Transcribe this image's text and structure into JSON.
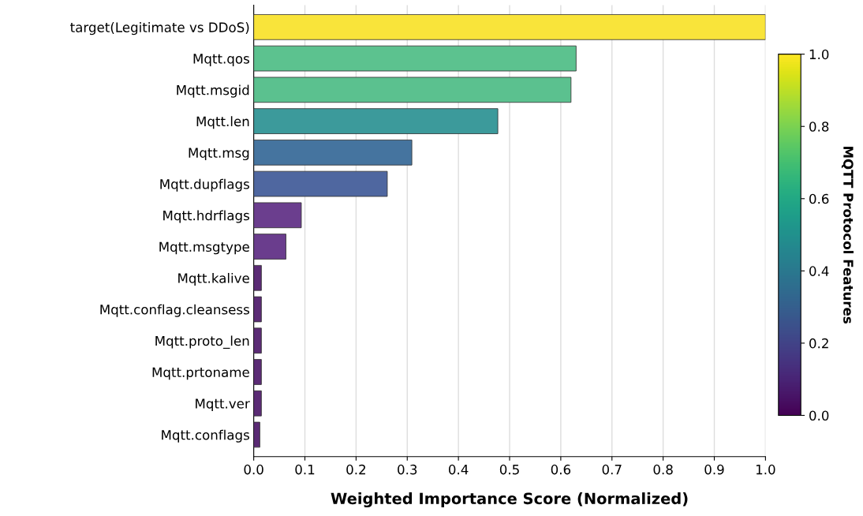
{
  "chart_data": {
    "type": "bar",
    "orientation": "horizontal",
    "xlabel": "Weighted Importance Score (Normalized)",
    "clabel": "MQTT Protocol Features",
    "categories": [
      "target(Legitimate vs DDoS)",
      "Mqtt.qos",
      "Mqtt.msgid",
      "Mqtt.len",
      "Mqtt.msg",
      "Mqtt.dupflags",
      "Mqtt.hdrflags",
      "Mqtt.msgtype",
      "Mqtt.kalive",
      "Mqtt.conflag.cleansess",
      "Mqtt.proto_len",
      "Mqtt.prtoname",
      "Mqtt.ver",
      "Mqtt.conflags"
    ],
    "values": [
      1.0,
      0.63,
      0.62,
      0.477,
      0.309,
      0.261,
      0.093,
      0.063,
      0.015,
      0.015,
      0.015,
      0.015,
      0.015,
      0.012
    ],
    "colors": [
      "#f9e43a",
      "#5cc28f",
      "#5bc18f",
      "#3c9a9b",
      "#45749f",
      "#4f67a0",
      "#6b3e8e",
      "#6a3d8d",
      "#5b2b75",
      "#5b2b75",
      "#5b2b75",
      "#5b2b75",
      "#5b2b75",
      "#5a2a74"
    ],
    "xlim": [
      0,
      1.0
    ],
    "xticks": [
      {
        "value": 0,
        "label": "0.0"
      },
      0.1,
      0.2,
      0.3,
      0.4,
      0.5,
      0.6,
      0.7,
      0.8,
      0.9,
      {
        "value": 1,
        "label": "1.0"
      }
    ],
    "clim": [
      0,
      1.0
    ],
    "cticks": [
      {
        "value": 0,
        "label": "0.0"
      },
      0.2,
      0.4,
      0.6,
      0.8,
      {
        "value": 1,
        "label": "1.0"
      }
    ],
    "grid": "x"
  }
}
